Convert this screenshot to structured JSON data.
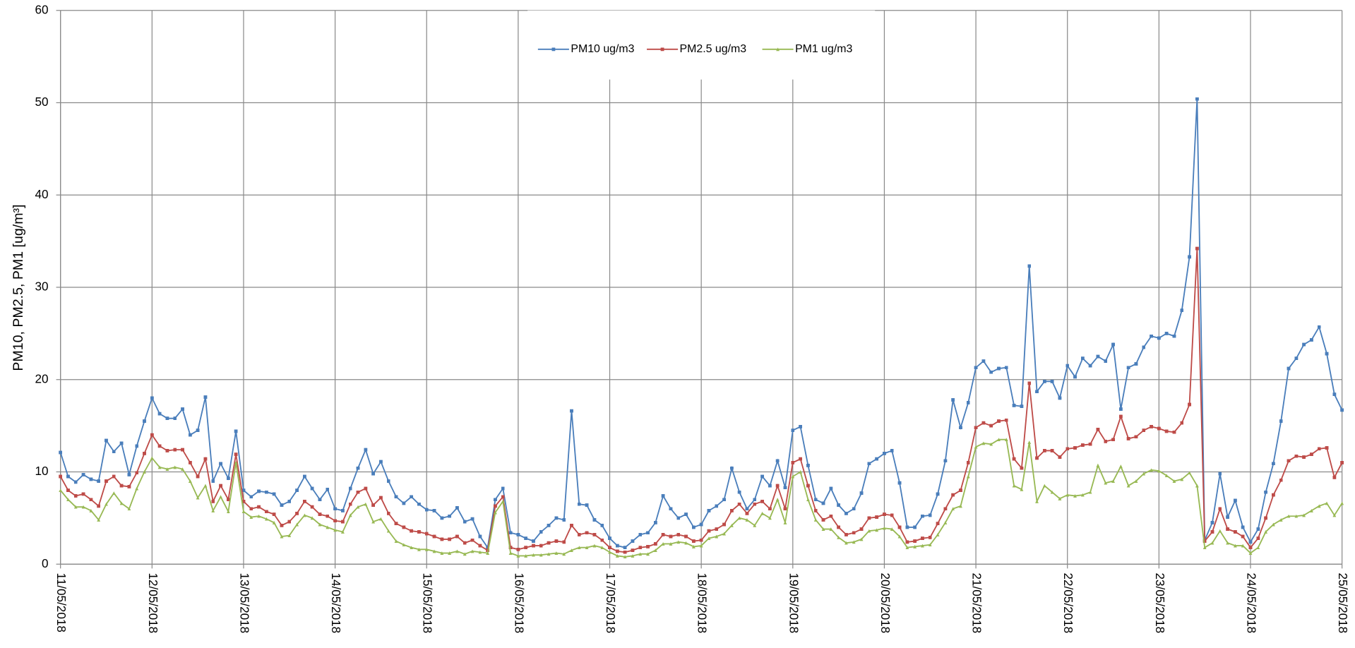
{
  "chart_data": {
    "type": "line",
    "y_label": "PM10, PM2.5, PM1 [ug/m³]",
    "x": [
      0,
      2,
      4,
      6,
      8,
      10,
      12,
      14,
      16,
      18,
      20,
      22,
      24,
      26,
      28,
      30,
      32,
      34,
      36,
      38,
      40,
      42,
      44,
      46,
      48,
      50,
      52,
      54,
      56,
      58,
      60,
      62,
      64,
      66,
      68,
      70,
      72,
      74,
      76,
      78,
      80,
      82,
      84,
      86,
      88,
      90,
      92,
      94,
      96,
      98,
      100,
      102,
      104,
      106,
      108,
      110,
      112,
      114,
      116,
      118,
      120,
      122,
      124,
      126,
      128,
      130,
      132,
      134,
      136,
      138,
      140,
      142,
      144,
      146,
      148,
      150,
      152,
      154,
      156,
      158,
      160,
      162,
      164,
      166,
      168,
      170,
      172,
      174,
      176,
      178,
      180,
      182,
      184,
      186,
      188,
      190,
      192,
      194,
      196,
      198,
      200,
      202,
      204,
      206,
      208,
      210,
      212,
      214,
      216,
      218,
      220,
      222,
      224,
      226,
      228,
      230,
      232,
      234,
      236,
      238,
      240,
      242,
      244,
      246,
      248,
      250,
      252,
      254,
      256,
      258,
      260,
      262,
      264,
      266,
      268,
      270,
      272,
      274,
      276,
      278,
      280,
      282,
      284,
      286,
      288,
      290,
      292,
      294,
      296,
      298,
      300,
      302,
      304,
      306,
      308,
      310,
      312,
      314,
      316,
      318,
      320,
      322,
      324,
      326,
      328,
      330,
      332,
      334,
      336
    ],
    "xlim": [
      0,
      336
    ],
    "xticks": [
      {
        "value": 0,
        "label": "11/05/2018"
      },
      {
        "value": 24,
        "label": "12/05/2018"
      },
      {
        "value": 48,
        "label": "13/05/2018"
      },
      {
        "value": 72,
        "label": "14/05/2018"
      },
      {
        "value": 96,
        "label": "15/05/2018"
      },
      {
        "value": 120,
        "label": "16/05/2018"
      },
      {
        "value": 144,
        "label": "17/05/2018"
      },
      {
        "value": 168,
        "label": "18/05/2018"
      },
      {
        "value": 192,
        "label": "19/05/2018"
      },
      {
        "value": 216,
        "label": "20/05/2018"
      },
      {
        "value": 240,
        "label": "21/05/2018"
      },
      {
        "value": 264,
        "label": "22/05/2018"
      },
      {
        "value": 288,
        "label": "23/05/2018"
      },
      {
        "value": 312,
        "label": "24/05/2018"
      },
      {
        "value": 336,
        "label": "25/05/2018"
      }
    ],
    "ylim": [
      0,
      60
    ],
    "yticks": [
      0,
      10,
      20,
      30,
      40,
      50,
      60
    ],
    "grid": true,
    "legend": "top",
    "series": [
      {
        "name": "PM10 ug/m3",
        "color": "#4a7ebb",
        "marker": "square",
        "values": [
          12.1,
          9.5,
          8.9,
          9.7,
          9.2,
          9.0,
          13.4,
          12.2,
          13.1,
          9.7,
          12.8,
          15.5,
          18.0,
          16.3,
          15.8,
          15.8,
          16.8,
          14.0,
          14.5,
          18.1,
          9.0,
          10.9,
          9.3,
          14.4,
          8.0,
          7.3,
          7.9,
          7.8,
          7.6,
          6.4,
          6.8,
          8.0,
          9.5,
          8.2,
          7.0,
          8.1,
          6.0,
          5.8,
          8.2,
          10.4,
          12.4,
          9.8,
          11.1,
          9.0,
          7.3,
          6.6,
          7.3,
          6.5,
          5.9,
          5.8,
          5.0,
          5.2,
          6.1,
          4.6,
          4.9,
          3.0,
          1.8,
          7.0,
          8.2,
          3.4,
          3.2,
          2.8,
          2.5,
          3.5,
          4.2,
          5.0,
          4.8,
          16.6,
          6.5,
          6.4,
          4.8,
          4.2,
          2.8,
          2.0,
          1.8,
          2.5,
          3.2,
          3.4,
          4.5,
          7.4,
          6.0,
          5.0,
          5.4,
          4.0,
          4.3,
          5.8,
          6.3,
          7.0,
          10.4,
          7.8,
          6.0,
          7.0,
          9.5,
          8.5,
          11.2,
          8.3,
          14.5,
          14.9,
          10.7,
          7.0,
          6.6,
          8.2,
          6.4,
          5.5,
          6.0,
          7.7,
          10.9,
          11.4,
          12.0,
          12.3,
          8.8,
          4.0,
          4.0,
          5.2,
          5.3,
          7.6,
          11.2,
          17.8,
          14.8,
          17.5,
          21.3,
          22.0,
          20.8,
          21.2,
          21.3,
          17.2,
          17.1,
          32.3,
          18.7,
          19.8,
          19.8,
          18.0,
          21.5,
          20.3,
          22.3,
          21.5,
          22.5,
          22.0,
          23.8,
          16.8,
          21.3,
          21.7,
          23.5,
          24.7,
          24.5,
          25.0,
          24.7,
          27.5,
          33.3,
          50.4,
          2.6,
          4.5,
          9.8,
          5.1,
          6.9,
          4.0,
          2.4,
          3.8,
          7.8,
          10.9,
          15.5,
          21.2,
          22.3,
          23.8,
          24.3,
          25.7,
          22.8,
          18.4,
          16.7
        ]
      },
      {
        "name": "PM2.5 ug/m3",
        "color": "#be4b48",
        "marker": "square",
        "values": [
          9.5,
          8.0,
          7.4,
          7.6,
          7.0,
          6.3,
          9.0,
          9.5,
          8.5,
          8.4,
          9.9,
          12.0,
          14.0,
          12.8,
          12.3,
          12.4,
          12.4,
          11.0,
          9.5,
          11.4,
          6.8,
          8.5,
          7.0,
          11.9,
          6.8,
          6.0,
          6.2,
          5.7,
          5.4,
          4.2,
          4.6,
          5.5,
          6.8,
          6.2,
          5.4,
          5.2,
          4.7,
          4.6,
          6.5,
          7.8,
          8.2,
          6.4,
          7.2,
          5.5,
          4.4,
          4.0,
          3.6,
          3.5,
          3.3,
          3.0,
          2.7,
          2.7,
          3.0,
          2.3,
          2.6,
          2.0,
          1.5,
          6.3,
          7.3,
          1.8,
          1.6,
          1.8,
          2.0,
          2.0,
          2.3,
          2.5,
          2.4,
          4.2,
          3.2,
          3.4,
          3.2,
          2.6,
          1.8,
          1.4,
          1.3,
          1.5,
          1.8,
          1.9,
          2.2,
          3.2,
          3.0,
          3.2,
          3.0,
          2.5,
          2.6,
          3.6,
          3.8,
          4.3,
          5.8,
          6.5,
          5.5,
          6.5,
          6.8,
          6.0,
          8.5,
          6.0,
          11.0,
          11.4,
          8.5,
          5.8,
          4.8,
          5.2,
          4.0,
          3.2,
          3.4,
          3.8,
          5.0,
          5.1,
          5.4,
          5.3,
          4.0,
          2.4,
          2.5,
          2.8,
          2.9,
          4.4,
          6.0,
          7.5,
          8.0,
          11.0,
          14.8,
          15.3,
          15.0,
          15.5,
          15.6,
          11.4,
          10.4,
          19.6,
          11.5,
          12.3,
          12.3,
          11.6,
          12.5,
          12.6,
          12.9,
          13.0,
          14.6,
          13.3,
          13.5,
          16.0,
          13.6,
          13.8,
          14.5,
          14.9,
          14.7,
          14.4,
          14.3,
          15.3,
          17.3,
          34.2,
          2.5,
          3.5,
          6.0,
          3.8,
          3.5,
          3.0,
          1.8,
          2.8,
          5.0,
          7.5,
          9.1,
          11.2,
          11.7,
          11.6,
          11.9,
          12.5,
          12.6,
          9.4,
          11.0
        ]
      },
      {
        "name": "PM1 ug/m3",
        "color": "#98b954",
        "marker": "triangle",
        "values": [
          8.0,
          7.0,
          6.2,
          6.2,
          5.8,
          4.8,
          6.5,
          7.7,
          6.6,
          6.0,
          8.2,
          10.0,
          11.5,
          10.5,
          10.3,
          10.5,
          10.3,
          9.0,
          7.2,
          8.5,
          5.8,
          7.3,
          5.7,
          11.0,
          5.7,
          5.1,
          5.2,
          4.9,
          4.5,
          3.0,
          3.1,
          4.3,
          5.3,
          5.0,
          4.3,
          4.0,
          3.7,
          3.5,
          5.3,
          6.2,
          6.5,
          4.6,
          4.9,
          3.6,
          2.5,
          2.1,
          1.8,
          1.6,
          1.6,
          1.4,
          1.2,
          1.2,
          1.4,
          1.1,
          1.4,
          1.3,
          1.2,
          5.6,
          6.8,
          1.2,
          0.9,
          0.9,
          1.0,
          1.0,
          1.1,
          1.2,
          1.1,
          1.5,
          1.8,
          1.8,
          2.0,
          1.8,
          1.3,
          0.9,
          0.8,
          0.9,
          1.1,
          1.1,
          1.5,
          2.2,
          2.2,
          2.4,
          2.3,
          1.9,
          2.0,
          2.8,
          3.0,
          3.3,
          4.2,
          5.0,
          4.8,
          4.2,
          5.5,
          5.0,
          7.0,
          4.5,
          9.5,
          10.0,
          7.0,
          4.8,
          3.8,
          3.8,
          2.9,
          2.3,
          2.4,
          2.7,
          3.6,
          3.7,
          3.9,
          3.8,
          3.0,
          1.8,
          1.9,
          2.0,
          2.1,
          3.2,
          4.5,
          6.0,
          6.3,
          9.5,
          12.7,
          13.1,
          13.0,
          13.5,
          13.5,
          8.5,
          8.1,
          13.2,
          6.8,
          8.5,
          7.8,
          7.1,
          7.5,
          7.4,
          7.5,
          7.8,
          10.7,
          8.8,
          9.0,
          10.6,
          8.5,
          9.0,
          9.8,
          10.2,
          10.1,
          9.6,
          9.0,
          9.2,
          9.9,
          8.5,
          1.8,
          2.3,
          3.6,
          2.3,
          2.0,
          2.0,
          1.2,
          1.8,
          3.5,
          4.3,
          4.8,
          5.2,
          5.2,
          5.3,
          5.8,
          6.3,
          6.6,
          5.3,
          6.6
        ]
      }
    ]
  }
}
